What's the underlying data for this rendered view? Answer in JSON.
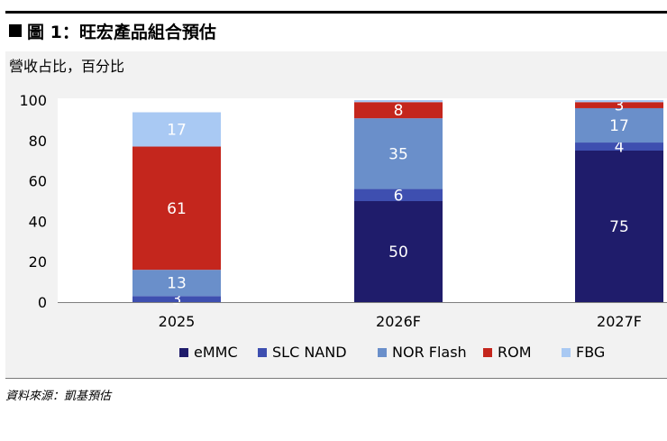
{
  "figure": {
    "title": "圖 1：旺宏產品組合預估",
    "unit_label": "營收占比，百分比",
    "source": "資料來源：凱基預估"
  },
  "colors": {
    "eMMC": "#1f1c6b",
    "SLC NAND": "#3e4fb0",
    "NOR Flash": "#6a8fca",
    "ROM": "#c4261d",
    "FBG": "#a9c9f3"
  },
  "chart_data": {
    "type": "bar",
    "stacked": true,
    "categories": [
      "2025",
      "2026F",
      "2027F"
    ],
    "series": [
      {
        "name": "eMMC",
        "values": [
          0,
          50,
          75
        ],
        "labels": [
          "",
          "50",
          "75"
        ]
      },
      {
        "name": "SLC NAND",
        "values": [
          3,
          6,
          4
        ],
        "labels": [
          "3",
          "6",
          "4"
        ]
      },
      {
        "name": "NOR Flash",
        "values": [
          13,
          35,
          17
        ],
        "labels": [
          "13",
          "35",
          "17"
        ]
      },
      {
        "name": "ROM",
        "values": [
          61,
          8,
          3
        ],
        "labels": [
          "61",
          "8",
          "3"
        ]
      },
      {
        "name": "FBG",
        "values": [
          17,
          1,
          1
        ],
        "labels": [
          "17",
          "",
          ""
        ]
      }
    ],
    "top_cap": [
      6,
      0,
      0
    ],
    "ylim": [
      0,
      100
    ],
    "yticks": [
      "0",
      "20",
      "40",
      "60",
      "80",
      "100"
    ],
    "legend": [
      "eMMC",
      "SLC NAND",
      "NOR Flash",
      "ROM",
      "FBG"
    ],
    "legend_position": "bottom",
    "grid": false
  }
}
